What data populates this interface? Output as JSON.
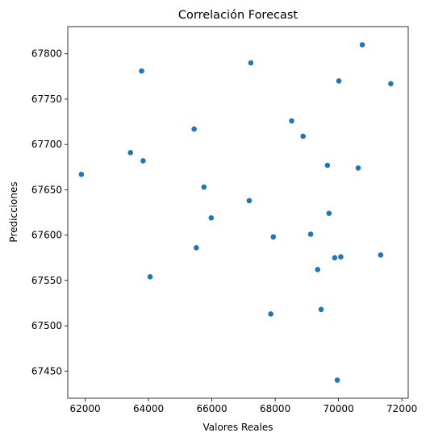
{
  "chart_data": {
    "type": "scatter",
    "title": "Correlación Forecast",
    "xlabel": "Valores Reales",
    "ylabel": "Predicciones",
    "xlim": [
      61450,
      72200
    ],
    "ylim": [
      67420,
      67830
    ],
    "xticks": [
      62000,
      64000,
      66000,
      68000,
      70000,
      72000
    ],
    "yticks": [
      67450,
      67500,
      67550,
      67600,
      67650,
      67700,
      67750,
      67800
    ],
    "grid": false,
    "legend": "none",
    "marker_color": "#1f77b4",
    "points": [
      {
        "x": 70750,
        "y": 67810
      },
      {
        "x": 67230,
        "y": 67790
      },
      {
        "x": 63780,
        "y": 67781
      },
      {
        "x": 70010,
        "y": 67770
      },
      {
        "x": 71650,
        "y": 67767
      },
      {
        "x": 68520,
        "y": 67726
      },
      {
        "x": 65440,
        "y": 67717
      },
      {
        "x": 68880,
        "y": 67709
      },
      {
        "x": 63430,
        "y": 67691
      },
      {
        "x": 63830,
        "y": 67682
      },
      {
        "x": 69650,
        "y": 67677
      },
      {
        "x": 70620,
        "y": 67674
      },
      {
        "x": 61880,
        "y": 67667
      },
      {
        "x": 65750,
        "y": 67653
      },
      {
        "x": 67180,
        "y": 67638
      },
      {
        "x": 69700,
        "y": 67624
      },
      {
        "x": 65980,
        "y": 67619
      },
      {
        "x": 67940,
        "y": 67598
      },
      {
        "x": 69120,
        "y": 67601
      },
      {
        "x": 65510,
        "y": 67586
      },
      {
        "x": 71330,
        "y": 67578
      },
      {
        "x": 70070,
        "y": 67576
      },
      {
        "x": 69880,
        "y": 67575
      },
      {
        "x": 69340,
        "y": 67562
      },
      {
        "x": 64050,
        "y": 67554
      },
      {
        "x": 67860,
        "y": 67513
      },
      {
        "x": 69450,
        "y": 67518
      },
      {
        "x": 69960,
        "y": 67440
      }
    ]
  }
}
